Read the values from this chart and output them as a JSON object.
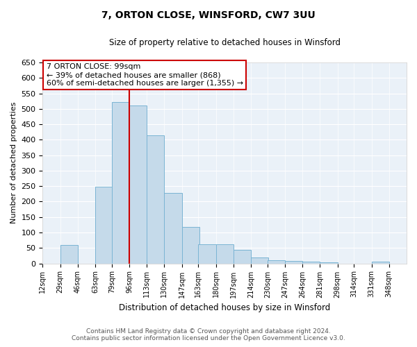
{
  "title": "7, ORTON CLOSE, WINSFORD, CW7 3UU",
  "subtitle": "Size of property relative to detached houses in Winsford",
  "xlabel": "Distribution of detached houses by size in Winsford",
  "ylabel": "Number of detached properties",
  "bar_left_edges": [
    12,
    29,
    46,
    63,
    79,
    96,
    113,
    130,
    147,
    163,
    180,
    197,
    214,
    230,
    247,
    264,
    281,
    298,
    314,
    331
  ],
  "bar_heights": [
    0,
    60,
    0,
    248,
    522,
    510,
    415,
    228,
    117,
    63,
    63,
    45,
    20,
    10,
    8,
    5,
    3,
    0,
    0,
    5
  ],
  "bar_widths": [
    17,
    17,
    17,
    17,
    17,
    17,
    17,
    17,
    17,
    17,
    17,
    17,
    17,
    17,
    17,
    17,
    17,
    17,
    17,
    17
  ],
  "tick_labels": [
    "12sqm",
    "29sqm",
    "46sqm",
    "63sqm",
    "79sqm",
    "96sqm",
    "113sqm",
    "130sqm",
    "147sqm",
    "163sqm",
    "180sqm",
    "197sqm",
    "214sqm",
    "230sqm",
    "247sqm",
    "264sqm",
    "281sqm",
    "298sqm",
    "314sqm",
    "331sqm",
    "348sqm"
  ],
  "bar_color": "#c5daea",
  "bar_edge_color": "#7ab4d4",
  "vline_x": 96,
  "vline_color": "#cc0000",
  "ylim": [
    0,
    650
  ],
  "yticks": [
    0,
    50,
    100,
    150,
    200,
    250,
    300,
    350,
    400,
    450,
    500,
    550,
    600,
    650
  ],
  "annotation_line1": "7 ORTON CLOSE: 99sqm",
  "annotation_line2": "← 39% of detached houses are smaller (868)",
  "annotation_line3": "60% of semi-detached houses are larger (1,355) →",
  "footnote1": "Contains HM Land Registry data © Crown copyright and database right 2024.",
  "footnote2": "Contains public sector information licensed under the Open Government Licence v3.0.",
  "background_color": "#ffffff",
  "plot_bg_color": "#eaf1f8",
  "grid_color": "#ffffff",
  "title_fontsize": 10,
  "subtitle_fontsize": 8.5,
  "ylabel_fontsize": 8,
  "xlabel_fontsize": 8.5,
  "tick_fontsize": 7,
  "annot_fontsize": 8,
  "footnote_fontsize": 6.5
}
